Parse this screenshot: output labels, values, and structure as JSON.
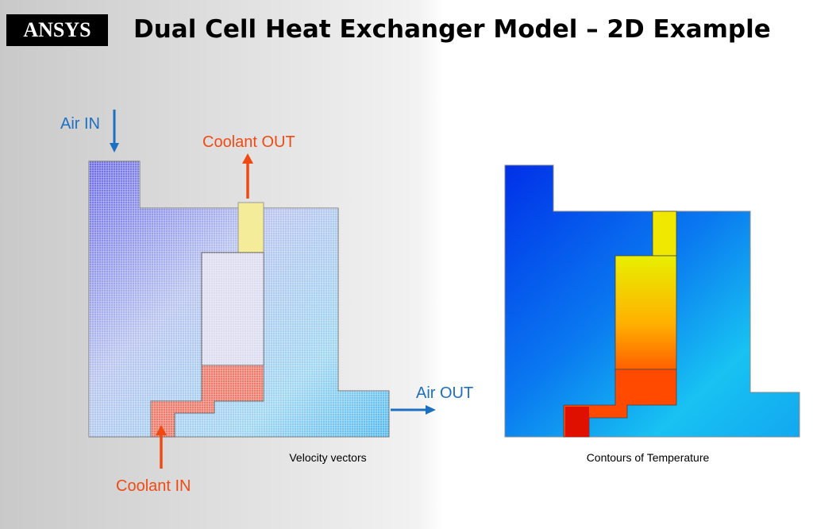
{
  "header": {
    "logo": "ANSYS",
    "title": "Dual Cell Heat Exchanger Model – 2D Example"
  },
  "left_figure": {
    "air_in": "Air IN",
    "coolant_out": "Coolant OUT",
    "air_out": "Air OUT",
    "coolant_in": "Coolant IN",
    "caption": "Velocity vectors"
  },
  "right_figure": {
    "caption": "Contours of Temperature"
  }
}
